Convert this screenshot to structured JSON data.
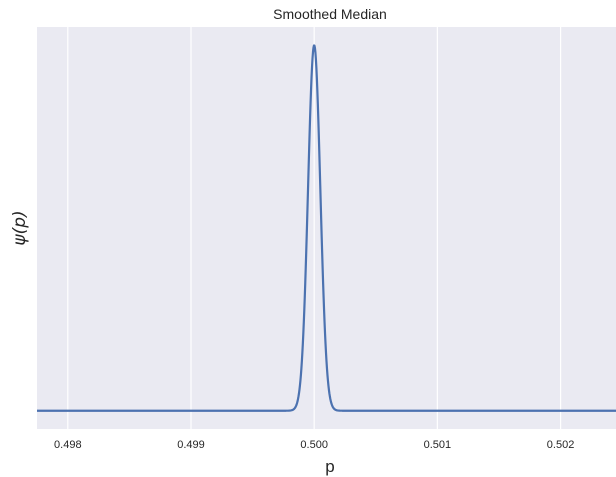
{
  "chart_data": {
    "type": "line",
    "title": "Smoothed Median",
    "xlabel": "p",
    "ylabel": "ψ(p)",
    "xlim": [
      0.49775,
      0.50245
    ],
    "ylim": [
      -0.05,
      1.05
    ],
    "x_ticks": [
      0.498,
      0.499,
      0.5,
      0.501,
      0.502
    ],
    "x_tick_labels": [
      "0.498",
      "0.499",
      "0.500",
      "0.501",
      "0.502"
    ],
    "y_ticks_visible": false,
    "grid": true,
    "grid_axis": "x",
    "background_color": "#EAEAF2",
    "grid_color": "#FFFFFF",
    "series": [
      {
        "color": "#4C72B0",
        "shape": "gaussian_peak",
        "peak_x": 0.5,
        "peak_y": 1.0,
        "baseline_y": 0.0,
        "width_sigma": 5e-05,
        "x": [
          0.49775,
          0.4998,
          0.49985,
          0.4999,
          0.49993,
          0.49996,
          0.49998,
          0.5,
          0.50002,
          0.50004,
          0.50007,
          0.5001,
          0.50015,
          0.5002,
          0.50245
        ],
        "y": [
          0.0,
          0.0,
          0.011,
          0.135,
          0.41,
          0.73,
          0.92,
          1.0,
          0.92,
          0.73,
          0.41,
          0.135,
          0.011,
          0.0,
          0.0
        ]
      }
    ]
  }
}
